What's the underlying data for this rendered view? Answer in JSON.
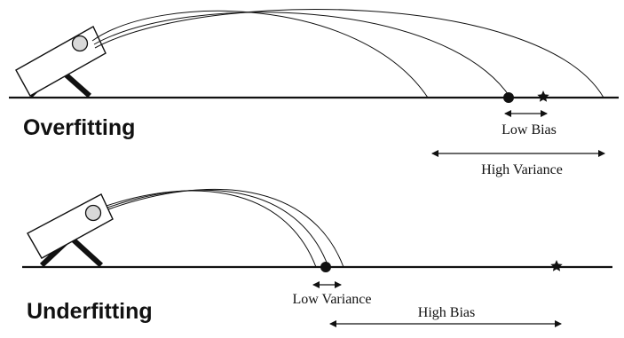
{
  "panels": [
    {
      "heading": "Overfitting",
      "labels": [
        "Low Bias",
        "High Variance"
      ]
    },
    {
      "heading": "Underfitting",
      "labels": [
        "Low Variance",
        "High Bias"
      ]
    }
  ],
  "colors": {
    "ink": "#111111",
    "ball": "#d9d9d9",
    "background": "#ffffff"
  },
  "icons": {
    "target": "star-icon",
    "landing": "dot-icon",
    "launcher": "catapult-icon"
  }
}
